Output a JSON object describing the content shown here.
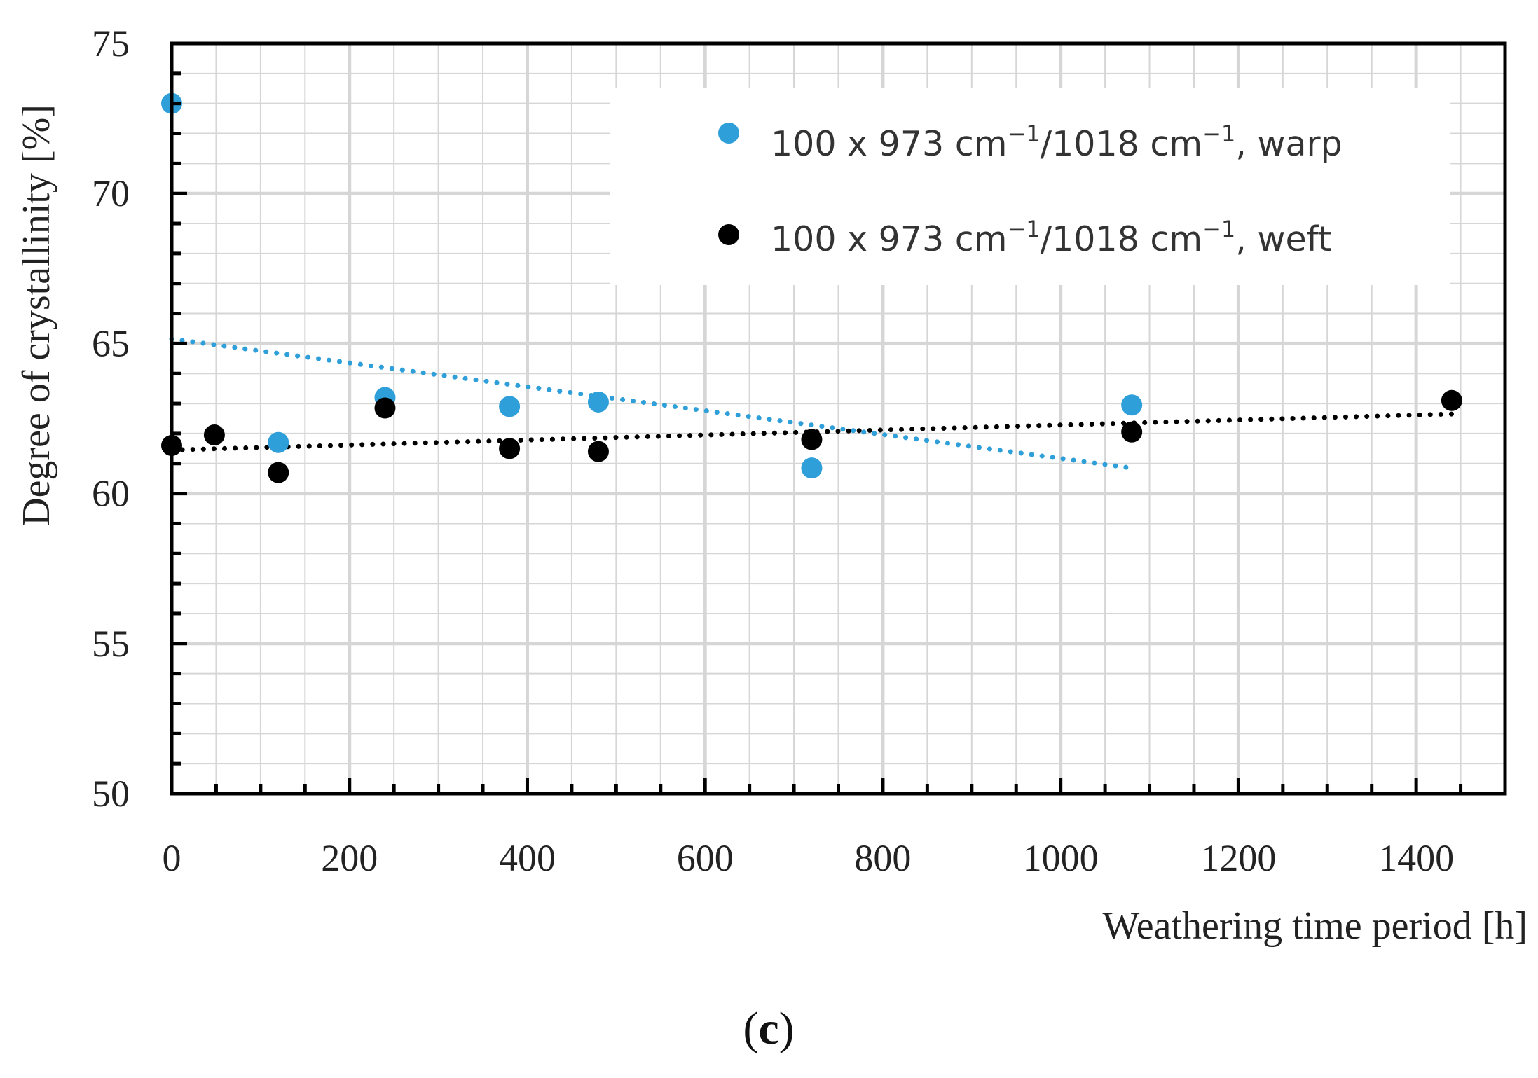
{
  "chart_data": {
    "type": "scatter",
    "title": "",
    "xlabel": "Weathering time period [h]",
    "ylabel": "Degree of crystallinity [%]",
    "xlim": [
      0,
      1500
    ],
    "ylim": [
      50,
      75
    ],
    "xticks": [
      0,
      200,
      400,
      600,
      800,
      1000,
      1200,
      1400
    ],
    "yticks": [
      50,
      55,
      60,
      65,
      70,
      75
    ],
    "x_minor_step": 50,
    "y_minor_step": 1,
    "grid": true,
    "legend_position": "top-right",
    "series": [
      {
        "name": "warp",
        "label_prefix": "100 x 973 cm",
        "label_sup1": "−1",
        "label_mid": "/1018 cm",
        "label_sup2": "−1",
        "label_suffix": ", warp",
        "color": "#2e9fd8",
        "x": [
          0,
          120,
          240,
          380,
          480,
          720,
          1080
        ],
        "values": [
          73.0,
          61.7,
          63.2,
          62.9,
          63.05,
          60.85,
          62.95
        ],
        "trendline": {
          "type": "linear",
          "x": [
            0,
            1080
          ],
          "y": [
            65.15,
            60.85
          ]
        }
      },
      {
        "name": "weft",
        "label_prefix": "100 x 973 cm",
        "label_sup1": "−1",
        "label_mid": "/1018 cm",
        "label_sup2": "−1",
        "label_suffix": ", weft",
        "color": "#000000",
        "x": [
          0,
          48,
          120,
          240,
          380,
          480,
          720,
          1080,
          1440
        ],
        "values": [
          61.6,
          61.95,
          60.7,
          62.85,
          61.5,
          61.4,
          61.8,
          62.05,
          63.1
        ],
        "trendline": {
          "type": "linear",
          "x": [
            0,
            1440
          ],
          "y": [
            61.45,
            62.65
          ]
        }
      }
    ]
  },
  "caption": {
    "open": "(",
    "letter": "c",
    "close": ")"
  },
  "colors": {
    "grid": "#d6d6d6",
    "axis": "#000000"
  }
}
